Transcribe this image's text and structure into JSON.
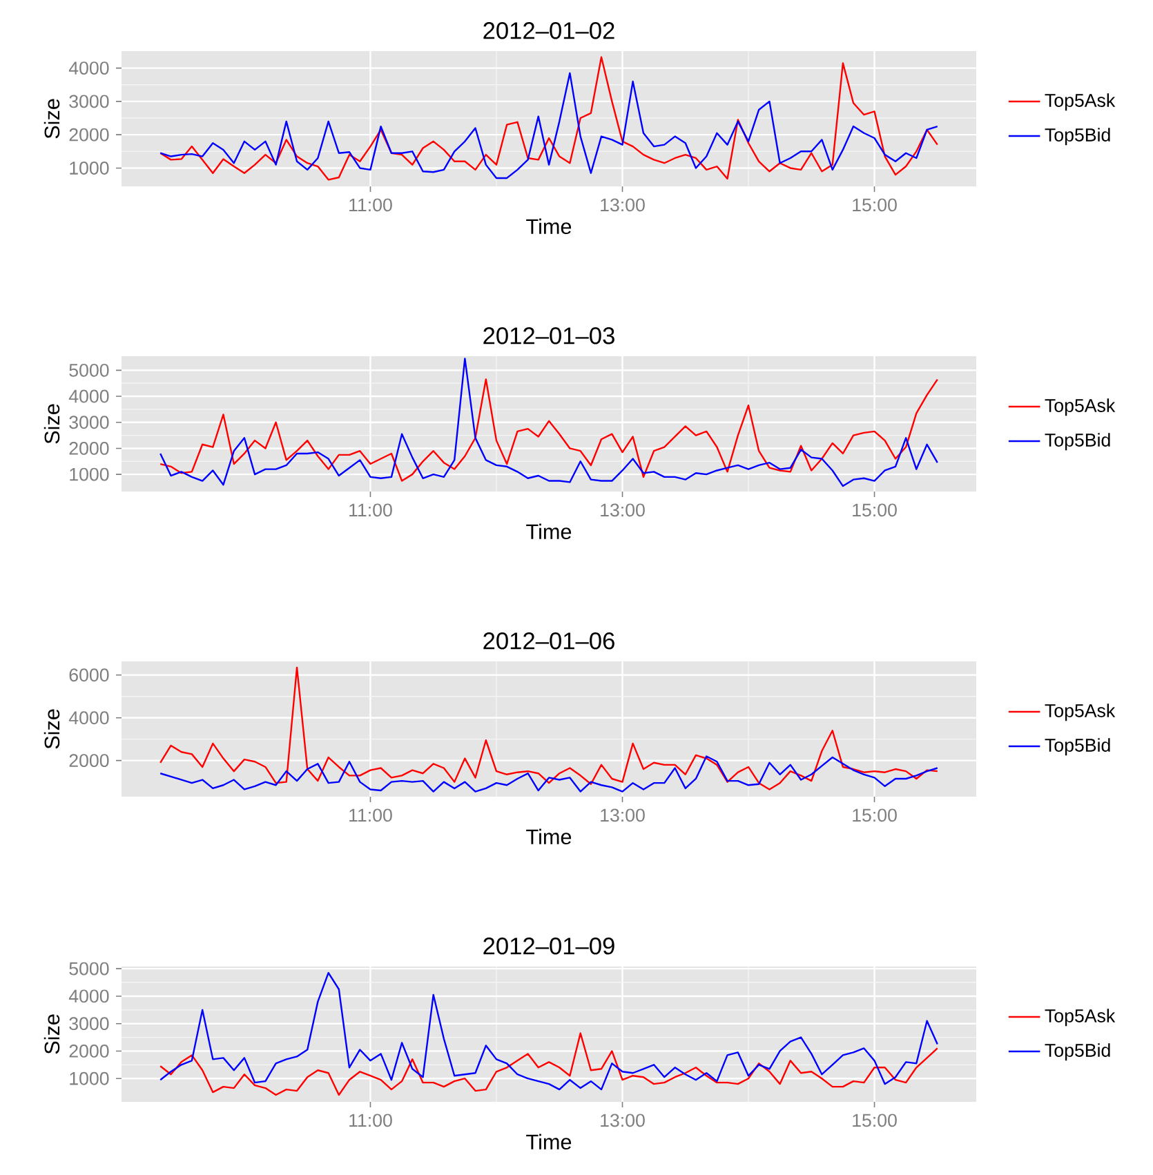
{
  "chart_data": [
    {
      "type": "line",
      "title": "2012‒01‒02",
      "xlabel": "Time",
      "ylabel": "Size",
      "legend": "right",
      "grid": true,
      "x": [
        9.333,
        9.417,
        9.5,
        9.583,
        9.667,
        9.75,
        9.833,
        9.917,
        10,
        10.083,
        10.167,
        10.25,
        10.333,
        10.417,
        10.5,
        10.583,
        10.667,
        10.75,
        10.833,
        10.917,
        11,
        11.083,
        11.167,
        11.25,
        11.333,
        11.417,
        11.5,
        11.583,
        11.667,
        11.75,
        11.833,
        11.917,
        12,
        12.083,
        12.167,
        12.25,
        12.333,
        12.417,
        12.5,
        12.583,
        12.667,
        12.75,
        12.833,
        12.917,
        13,
        13.083,
        13.167,
        13.25,
        13.333,
        13.417,
        13.5,
        13.583,
        13.667,
        13.75,
        13.833,
        13.917,
        14,
        14.083,
        14.167,
        14.25,
        14.333,
        14.417,
        14.5,
        14.583,
        14.667,
        14.75,
        14.833,
        14.917,
        15,
        15.083,
        15.167,
        15.25,
        15.333,
        15.417,
        15.5
      ],
      "xlim": [
        9.025,
        15.808
      ],
      "xticks": [
        {
          "value": 11,
          "label": "11:00"
        },
        {
          "value": 13,
          "label": "13:00"
        },
        {
          "value": 15,
          "label": "15:00"
        }
      ],
      "ylim": [
        450,
        4510
      ],
      "yticks": [
        1000,
        2000,
        3000,
        4000
      ],
      "series": [
        {
          "name": "Top5Ask",
          "color": "#ff0000",
          "values": [
            1450,
            1250,
            1270,
            1650,
            1250,
            850,
            1270,
            1050,
            850,
            1100,
            1400,
            1150,
            1850,
            1350,
            1150,
            1050,
            650,
            720,
            1400,
            1200,
            1650,
            2150,
            1450,
            1400,
            1100,
            1600,
            1800,
            1550,
            1200,
            1200,
            950,
            1400,
            1100,
            2300,
            2380,
            1300,
            1250,
            1900,
            1350,
            1150,
            2500,
            2650,
            4330,
            3000,
            1800,
            1650,
            1400,
            1250,
            1150,
            1300,
            1400,
            1300,
            950,
            1050,
            680,
            2450,
            1750,
            1200,
            900,
            1150,
            1000,
            950,
            1450,
            900,
            1100,
            4150,
            2950,
            2600,
            2700,
            1350,
            800,
            1050,
            1500,
            2150,
            1700
          ]
        },
        {
          "name": "Top5Bid",
          "color": "#0000ff",
          "values": [
            1450,
            1350,
            1400,
            1420,
            1350,
            1750,
            1550,
            1150,
            1800,
            1550,
            1800,
            1100,
            2400,
            1200,
            950,
            1300,
            2400,
            1450,
            1480,
            1000,
            950,
            2250,
            1450,
            1450,
            1500,
            900,
            880,
            950,
            1500,
            1800,
            2200,
            1100,
            700,
            700,
            950,
            1250,
            2550,
            1100,
            2400,
            3850,
            1950,
            850,
            1950,
            1850,
            1700,
            3600,
            2050,
            1650,
            1700,
            1950,
            1750,
            1000,
            1350,
            2050,
            1700,
            2400,
            1800,
            2750,
            3000,
            1150,
            1300,
            1500,
            1500,
            1850,
            950,
            1550,
            2250,
            2050,
            1900,
            1400,
            1200,
            1450,
            1300,
            2150,
            2250
          ]
        }
      ]
    },
    {
      "type": "line",
      "title": "2012‒01‒03",
      "xlabel": "Time",
      "ylabel": "Size",
      "legend": "right",
      "grid": true,
      "x": [
        9.333,
        9.417,
        9.5,
        9.583,
        9.667,
        9.75,
        9.833,
        9.917,
        10,
        10.083,
        10.167,
        10.25,
        10.333,
        10.417,
        10.5,
        10.583,
        10.667,
        10.75,
        10.833,
        10.917,
        11,
        11.083,
        11.167,
        11.25,
        11.333,
        11.417,
        11.5,
        11.583,
        11.667,
        11.75,
        11.833,
        11.917,
        12,
        12.083,
        12.167,
        12.25,
        12.333,
        12.417,
        12.5,
        12.583,
        12.667,
        12.75,
        12.833,
        12.917,
        13,
        13.083,
        13.167,
        13.25,
        13.333,
        13.417,
        13.5,
        13.583,
        13.667,
        13.75,
        13.833,
        13.917,
        14,
        14.083,
        14.167,
        14.25,
        14.333,
        14.417,
        14.5,
        14.583,
        14.667,
        14.75,
        14.833,
        14.917,
        15,
        15.083,
        15.167,
        15.25,
        15.333,
        15.417,
        15.5
      ],
      "xlim": [
        9.025,
        15.808
      ],
      "xticks": [
        {
          "value": 11,
          "label": "11:00"
        },
        {
          "value": 13,
          "label": "13:00"
        },
        {
          "value": 15,
          "label": "15:00"
        }
      ],
      "ylim": [
        340,
        5540
      ],
      "yticks": [
        1000,
        2000,
        3000,
        4000,
        5000
      ],
      "series": [
        {
          "name": "Top5Ask",
          "color": "#ff0000",
          "values": [
            1400,
            1300,
            1050,
            1100,
            2150,
            2050,
            3300,
            1400,
            1800,
            2300,
            2000,
            3000,
            1550,
            1900,
            2300,
            1700,
            1200,
            1750,
            1750,
            1900,
            1400,
            1600,
            1800,
            750,
            1000,
            1500,
            1900,
            1450,
            1200,
            1700,
            2400,
            4650,
            2300,
            1400,
            2650,
            2750,
            2450,
            3050,
            2550,
            2000,
            1900,
            1350,
            2350,
            2550,
            1850,
            2450,
            900,
            1900,
            2050,
            2450,
            2850,
            2500,
            2650,
            2050,
            1100,
            2500,
            3650,
            1900,
            1250,
            1150,
            1100,
            2100,
            1150,
            1600,
            2200,
            1800,
            2500,
            2600,
            2650,
            2300,
            1600,
            2050,
            3350,
            4050,
            4650
          ]
        },
        {
          "name": "Top5Bid",
          "color": "#0000ff",
          "values": [
            1800,
            950,
            1100,
            900,
            750,
            1150,
            600,
            1900,
            2400,
            1000,
            1200,
            1200,
            1350,
            1800,
            1800,
            1850,
            1600,
            950,
            1250,
            1550,
            900,
            850,
            900,
            2550,
            1650,
            850,
            1000,
            900,
            1550,
            5450,
            2400,
            1550,
            1350,
            1300,
            1100,
            850,
            950,
            750,
            750,
            700,
            1500,
            800,
            750,
            750,
            1150,
            1600,
            1050,
            1100,
            900,
            900,
            800,
            1050,
            1000,
            1150,
            1250,
            1350,
            1200,
            1350,
            1450,
            1200,
            1250,
            1950,
            1650,
            1600,
            1150,
            550,
            800,
            850,
            750,
            1150,
            1300,
            2400,
            1200,
            2150,
            1450
          ]
        }
      ]
    },
    {
      "type": "line",
      "title": "2012‒01‒06",
      "xlabel": "Time",
      "ylabel": "Size",
      "legend": "right",
      "grid": true,
      "x": [
        9.333,
        9.417,
        9.5,
        9.583,
        9.667,
        9.75,
        9.833,
        9.917,
        10,
        10.083,
        10.167,
        10.25,
        10.333,
        10.417,
        10.5,
        10.583,
        10.667,
        10.75,
        10.833,
        10.917,
        11,
        11.083,
        11.167,
        11.25,
        11.333,
        11.417,
        11.5,
        11.583,
        11.667,
        11.75,
        11.833,
        11.917,
        12,
        12.083,
        12.167,
        12.25,
        12.333,
        12.417,
        12.5,
        12.583,
        12.667,
        12.75,
        12.833,
        12.917,
        13,
        13.083,
        13.167,
        13.25,
        13.333,
        13.417,
        13.5,
        13.583,
        13.667,
        13.75,
        13.833,
        13.917,
        14,
        14.083,
        14.167,
        14.25,
        14.333,
        14.417,
        14.5,
        14.583,
        14.667,
        14.75,
        14.833,
        14.917,
        15,
        15.083,
        15.167,
        15.25,
        15.333,
        15.417,
        15.5
      ],
      "xlim": [
        9.025,
        15.808
      ],
      "xticks": [
        {
          "value": 11,
          "label": "11:00"
        },
        {
          "value": 13,
          "label": "13:00"
        },
        {
          "value": 15,
          "label": "15:00"
        }
      ],
      "ylim": [
        310,
        6640
      ],
      "yticks": [
        2000,
        4000,
        6000
      ],
      "series": [
        {
          "name": "Top5Ask",
          "color": "#ff0000",
          "values": [
            1900,
            2700,
            2400,
            2300,
            1700,
            2800,
            2100,
            1500,
            2050,
            1950,
            1700,
            950,
            1000,
            6350,
            1600,
            1050,
            2150,
            1700,
            1300,
            1300,
            1550,
            1650,
            1200,
            1300,
            1550,
            1400,
            1850,
            1650,
            1000,
            2100,
            1200,
            2950,
            1500,
            1350,
            1450,
            1500,
            1400,
            950,
            1400,
            1650,
            1300,
            900,
            1800,
            1150,
            1000,
            2800,
            1600,
            1900,
            1800,
            1800,
            1350,
            2250,
            2100,
            1800,
            1000,
            1450,
            1700,
            950,
            650,
            950,
            1500,
            1300,
            1050,
            2450,
            3400,
            1700,
            1600,
            1450,
            1500,
            1450,
            1600,
            1500,
            1150,
            1550,
            1500
          ]
        },
        {
          "name": "Top5Bid",
          "color": "#0000ff",
          "values": [
            1400,
            1250,
            1100,
            950,
            1100,
            700,
            850,
            1100,
            650,
            800,
            1000,
            850,
            1500,
            1050,
            1600,
            1850,
            950,
            1000,
            1950,
            1000,
            650,
            600,
            1000,
            1050,
            1000,
            1050,
            550,
            1000,
            700,
            1000,
            550,
            700,
            950,
            850,
            1150,
            1400,
            600,
            1200,
            1100,
            1200,
            550,
            1000,
            850,
            750,
            550,
            950,
            650,
            950,
            950,
            1650,
            700,
            1150,
            2200,
            1950,
            1050,
            1050,
            850,
            900,
            1900,
            1350,
            1800,
            1100,
            1350,
            1750,
            2150,
            1850,
            1550,
            1350,
            1200,
            800,
            1150,
            1150,
            1300,
            1500,
            1650
          ]
        }
      ]
    },
    {
      "type": "line",
      "title": "2012‒01‒09",
      "xlabel": "Time",
      "ylabel": "Size",
      "legend": "right",
      "grid": true,
      "x": [
        9.333,
        9.417,
        9.5,
        9.583,
        9.667,
        9.75,
        9.833,
        9.917,
        10,
        10.083,
        10.167,
        10.25,
        10.333,
        10.417,
        10.5,
        10.583,
        10.667,
        10.75,
        10.833,
        10.917,
        11,
        11.083,
        11.167,
        11.25,
        11.333,
        11.417,
        11.5,
        11.583,
        11.667,
        11.75,
        11.833,
        11.917,
        12,
        12.083,
        12.167,
        12.25,
        12.333,
        12.417,
        12.5,
        12.583,
        12.667,
        12.75,
        12.833,
        12.917,
        13,
        13.083,
        13.167,
        13.25,
        13.333,
        13.417,
        13.5,
        13.583,
        13.667,
        13.75,
        13.833,
        13.917,
        14,
        14.083,
        14.167,
        14.25,
        14.333,
        14.417,
        14.5,
        14.583,
        14.667,
        14.75,
        14.833,
        14.917,
        15,
        15.083,
        15.167,
        15.25,
        15.333,
        15.417,
        15.5
      ],
      "xlim": [
        9.025,
        15.808
      ],
      "xticks": [
        {
          "value": 11,
          "label": "11:00"
        },
        {
          "value": 13,
          "label": "13:00"
        },
        {
          "value": 15,
          "label": "15:00"
        }
      ],
      "ylim": [
        150,
        5080
      ],
      "yticks": [
        1000,
        2000,
        3000,
        4000,
        5000
      ],
      "series": [
        {
          "name": "Top5Ask",
          "color": "#ff0000",
          "values": [
            1450,
            1150,
            1600,
            1850,
            1300,
            500,
            700,
            650,
            1150,
            750,
            650,
            400,
            600,
            550,
            1050,
            1300,
            1200,
            400,
            950,
            1250,
            1100,
            950,
            600,
            900,
            1700,
            850,
            850,
            700,
            900,
            1000,
            550,
            600,
            1250,
            1400,
            1650,
            1900,
            1400,
            1600,
            1400,
            1100,
            2650,
            1300,
            1350,
            2000,
            950,
            1100,
            1050,
            800,
            850,
            1050,
            1200,
            1400,
            1100,
            850,
            850,
            800,
            1000,
            1550,
            1250,
            800,
            1650,
            1200,
            1250,
            1000,
            700,
            700,
            900,
            850,
            1400,
            1400,
            950,
            850,
            1400,
            1750,
            2100
          ]
        },
        {
          "name": "Top5Bid",
          "color": "#0000ff",
          "values": [
            950,
            1250,
            1500,
            1650,
            3500,
            1700,
            1750,
            1300,
            1750,
            850,
            900,
            1550,
            1700,
            1800,
            2050,
            3800,
            4850,
            4250,
            1400,
            2050,
            1650,
            1900,
            950,
            2300,
            1350,
            1050,
            4050,
            2450,
            1100,
            1150,
            1200,
            2200,
            1700,
            1550,
            1150,
            1000,
            900,
            800,
            600,
            950,
            650,
            900,
            600,
            1550,
            1250,
            1200,
            1350,
            1500,
            1050,
            1400,
            1150,
            950,
            1200,
            900,
            1850,
            1950,
            1100,
            1500,
            1350,
            2000,
            2350,
            2500,
            1900,
            1150,
            1500,
            1850,
            1950,
            2100,
            1650,
            800,
            1050,
            1600,
            1550,
            3100,
            2250
          ]
        }
      ]
    }
  ]
}
